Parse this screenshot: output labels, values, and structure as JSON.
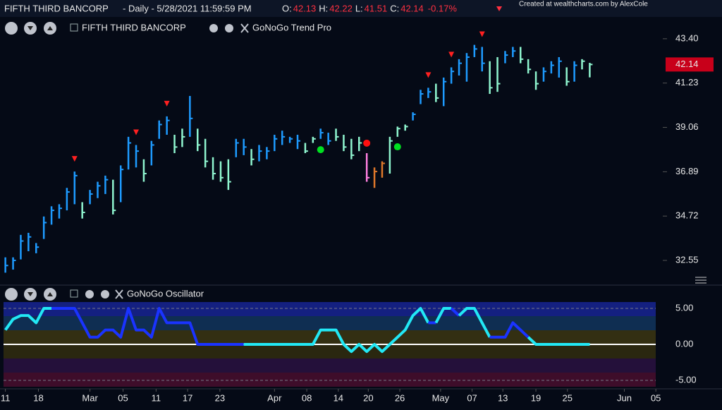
{
  "header": {
    "title": "FIFTH THIRD BANCORP",
    "subtitle": "- Daily - 5/28/2021 11:59:59 PM",
    "quote_labels": [
      "O:",
      "H:",
      "L:",
      "C:"
    ],
    "quote_values": [
      42.13,
      42.22,
      41.51,
      42.14
    ],
    "change": "-0.17%",
    "credit": "Created at wealthcharts.com by AlexCole"
  },
  "chart_data": [
    {
      "type": "ohlc",
      "legend": "FIFTH THIRD BANCORP",
      "indicator": "GoNoGo Trend Pro",
      "low": [
        31.95,
        32.1,
        32.6,
        33.0,
        32.9,
        33.6,
        34.3,
        34.6,
        35.0,
        35.3,
        34.6,
        35.3,
        35.6,
        35.8,
        34.8,
        35.4,
        37.0,
        37.1,
        36.4,
        37.2,
        38.5,
        38.7,
        37.8,
        38.1,
        38.6,
        37.9,
        37.1,
        36.5,
        36.4,
        36.0,
        37.6,
        37.7,
        37.2,
        37.4,
        37.5,
        37.9,
        38.2,
        38.3,
        38.0,
        37.8,
        38.3,
        38.5,
        38.2,
        38.4,
        37.9,
        37.5,
        37.9,
        36.4,
        36.1,
        36.6,
        36.8,
        38.6,
        38.9,
        39.4,
        40.2,
        40.5,
        40.3,
        40.1,
        41.2,
        41.6,
        41.3,
        42.5,
        41.8,
        40.7,
        40.8,
        42.2,
        42.5,
        42.2,
        41.7,
        40.9,
        41.3,
        41.7,
        41.5,
        41.1,
        41.3,
        41.9,
        41.51
      ],
      "high": [
        32.7,
        32.7,
        33.8,
        33.9,
        33.4,
        34.7,
        35.2,
        35.3,
        36.1,
        36.9,
        35.4,
        36.0,
        36.4,
        36.7,
        36.5,
        37.2,
        38.6,
        38.2,
        37.5,
        38.4,
        39.4,
        39.6,
        38.7,
        39.0,
        40.6,
        39.0,
        38.5,
        37.6,
        37.4,
        37.5,
        38.5,
        38.5,
        38.0,
        38.2,
        38.1,
        38.7,
        38.9,
        38.6,
        38.7,
        38.3,
        38.6,
        39.0,
        38.8,
        39.0,
        38.7,
        38.5,
        38.6,
        37.8,
        37.1,
        37.4,
        38.6,
        39.1,
        39.2,
        39.8,
        40.9,
        41.0,
        41.2,
        41.5,
        42.0,
        42.4,
        42.7,
        43.1,
        43.0,
        42.3,
        42.5,
        42.8,
        43.0,
        43.0,
        42.4,
        41.8,
        42.0,
        42.3,
        42.5,
        42.0,
        42.3,
        42.4,
        42.22
      ],
      "close": [
        32.3,
        32.55,
        33.5,
        33.7,
        33.2,
        34.4,
        35.0,
        35.1,
        35.9,
        36.7,
        34.9,
        35.8,
        36.2,
        36.5,
        35.0,
        37.0,
        38.3,
        37.9,
        36.8,
        38.2,
        39.2,
        39.4,
        38.1,
        38.6,
        39.5,
        38.2,
        37.4,
        36.8,
        36.6,
        36.4,
        38.3,
        38.1,
        37.5,
        37.9,
        37.9,
        38.5,
        38.6,
        38.5,
        38.4,
        37.9,
        38.5,
        38.8,
        38.4,
        38.6,
        38.1,
        37.7,
        38.3,
        36.6,
        36.9,
        37.3,
        38.4,
        39.0,
        39.1,
        39.7,
        40.7,
        40.8,
        40.5,
        41.3,
        41.8,
        42.2,
        42.5,
        42.9,
        42.2,
        41.0,
        41.2,
        42.6,
        42.8,
        42.4,
        41.9,
        41.2,
        41.8,
        42.1,
        42.3,
        41.3,
        42.1,
        42.3,
        42.14
      ],
      "colors": [
        "#1e9bff",
        "#1e9bff",
        "#1e9bff",
        "#1e9bff",
        "#1e9bff",
        "#1e9bff",
        "#1e9bff",
        "#1e9bff",
        "#1e9bff",
        "#1e9bff",
        "#8ff5cf",
        "#1e9bff",
        "#1e9bff",
        "#1e9bff",
        "#8ff5cf",
        "#1e9bff",
        "#1e9bff",
        "#1e9bff",
        "#8ff5cf",
        "#1e9bff",
        "#1e9bff",
        "#1e9bff",
        "#8ff5cf",
        "#8ff5cf",
        "#1e9bff",
        "#8ff5cf",
        "#8ff5cf",
        "#8ff5cf",
        "#8ff5cf",
        "#8ff5cf",
        "#1e9bff",
        "#1e9bff",
        "#8ff5cf",
        "#1e9bff",
        "#1e9bff",
        "#1e9bff",
        "#1e9bff",
        "#1e9bff",
        "#1e9bff",
        "#8ff5cf",
        "#8ff5cf",
        "#1e9bff",
        "#1e9bff",
        "#8ff5cf",
        "#8ff5cf",
        "#8ff5cf",
        "#8ff5cf",
        "#ff80e0",
        "#e0782a",
        "#e0782a",
        "#8ff5cf",
        "#8ff5cf",
        "#8ff5cf",
        "#1e9bff",
        "#1e9bff",
        "#1e9bff",
        "#8ff5cf",
        "#1e9bff",
        "#1e9bff",
        "#1e9bff",
        "#1e9bff",
        "#1e9bff",
        "#1e9bff",
        "#8ff5cf",
        "#8ff5cf",
        "#1e9bff",
        "#1e9bff",
        "#8ff5cf",
        "#8ff5cf",
        "#8ff5cf",
        "#1e9bff",
        "#1e9bff",
        "#1e9bff",
        "#8ff5cf",
        "#1e9bff",
        "#8ff5cf",
        "#8ff5cf"
      ],
      "triangles": [
        9,
        17,
        21,
        55,
        58,
        62
      ],
      "triangle_color": "#ff2020",
      "dots": [
        {
          "x": 41,
          "y": 37.97,
          "color": "#00e020"
        },
        {
          "x": 47,
          "y": 38.29,
          "color": "#ff1010"
        },
        {
          "x": 51,
          "y": 38.11,
          "color": "#00e020"
        }
      ],
      "last_price_color": "#c8001a",
      "xlim": [
        -0.7,
        85.5
      ],
      "ylim": [
        31.48,
        44.26
      ],
      "yticks": [
        {
          "value": 43.4,
          "label": "43.40"
        },
        41.23,
        39.06,
        36.89,
        34.72,
        32.55
      ]
    },
    {
      "type": "line",
      "title": "GoNoGo Oscillator",
      "values": [
        2,
        3.5,
        4,
        4,
        3,
        5,
        5,
        5,
        5,
        5,
        3,
        1,
        1,
        2,
        2,
        1,
        5,
        2,
        2,
        1,
        5,
        3,
        3,
        3,
        3,
        0,
        0,
        0,
        0,
        0,
        0,
        0,
        0,
        0,
        0,
        0,
        0,
        0,
        0,
        0,
        0,
        2,
        2,
        2,
        0,
        -1,
        0,
        -1,
        0,
        -1,
        0,
        1,
        2,
        4,
        5,
        3,
        3,
        5,
        5,
        4,
        5,
        5,
        3,
        1,
        1,
        1,
        3,
        2,
        1,
        0,
        0,
        0,
        0,
        0,
        0,
        0,
        0
      ],
      "colors": [
        "#22e8f5",
        "#22e8f5",
        "#22e8f5",
        "#22e8f5",
        "#22e8f5",
        "#22e8f5",
        "#1a33ff",
        "#1a33ff",
        "#1a33ff",
        "#1a33ff",
        "#1a33ff",
        "#1a33ff",
        "#1a33ff",
        "#1a33ff",
        "#1a33ff",
        "#1a33ff",
        "#1a33ff",
        "#1a33ff",
        "#1a33ff",
        "#1a33ff",
        "#1a33ff",
        "#1a33ff",
        "#1a33ff",
        "#1a33ff",
        "#1a33ff",
        "#1a33ff",
        "#1a33ff",
        "#1a33ff",
        "#1a33ff",
        "#1a33ff",
        "#1a33ff",
        "#22e8f5",
        "#22e8f5",
        "#22e8f5",
        "#22e8f5",
        "#22e8f5",
        "#22e8f5",
        "#22e8f5",
        "#22e8f5",
        "#22e8f5",
        "#22e8f5",
        "#22e8f5",
        "#22e8f5",
        "#22e8f5",
        "#22e8f5",
        "#22e8f5",
        "#22e8f5",
        "#22e8f5",
        "#22e8f5",
        "#22e8f5",
        "#22e8f5",
        "#22e8f5",
        "#22e8f5",
        "#22e8f5",
        "#22e8f5",
        "#1a33ff",
        "#22e8f5",
        "#22e8f5",
        "#1a33ff",
        "#22e8f5",
        "#22e8f5",
        "#22e8f5",
        "#22e8f5",
        "#1a33ff",
        "#1a33ff",
        "#1a33ff",
        "#1a33ff",
        "#1a33ff",
        "#22e8f5",
        "#22e8f5",
        "#22e8f5",
        "#22e8f5",
        "#22e8f5",
        "#22e8f5",
        "#22e8f5",
        "#22e8f5",
        "#22e8f5"
      ],
      "xlim": [
        -0.7,
        85.5
      ],
      "ylim": [
        -5.88,
        5.88
      ],
      "yticks": [
        {
          "value": 5,
          "label": "5.00"
        },
        {
          "value": 0,
          "label": "0.00"
        },
        {
          "value": -5,
          "label": "-5.00"
        }
      ],
      "xticks": [
        {
          "value": 0,
          "label": "11"
        },
        {
          "value": 4.3,
          "label": "18"
        },
        {
          "value": 11,
          "label": "Mar"
        },
        {
          "value": 15.3,
          "label": "05"
        },
        {
          "value": 19.6,
          "label": "11"
        },
        {
          "value": 23.7,
          "label": "17"
        },
        {
          "value": 27.9,
          "label": "23"
        },
        {
          "value": 35,
          "label": "Apr"
        },
        {
          "value": 39.2,
          "label": "08"
        },
        {
          "value": 43.3,
          "label": "14"
        },
        {
          "value": 47.2,
          "label": "20"
        },
        {
          "value": 51.3,
          "label": "26"
        },
        {
          "value": 56.6,
          "label": "May"
        },
        {
          "value": 60.7,
          "label": "07"
        },
        {
          "value": 64.7,
          "label": "13"
        },
        {
          "value": 69,
          "label": "19"
        },
        {
          "value": 73.1,
          "label": "25"
        },
        {
          "value": 80.5,
          "label": "Jun"
        },
        {
          "value": 84.6,
          "label": "05"
        }
      ]
    }
  ]
}
